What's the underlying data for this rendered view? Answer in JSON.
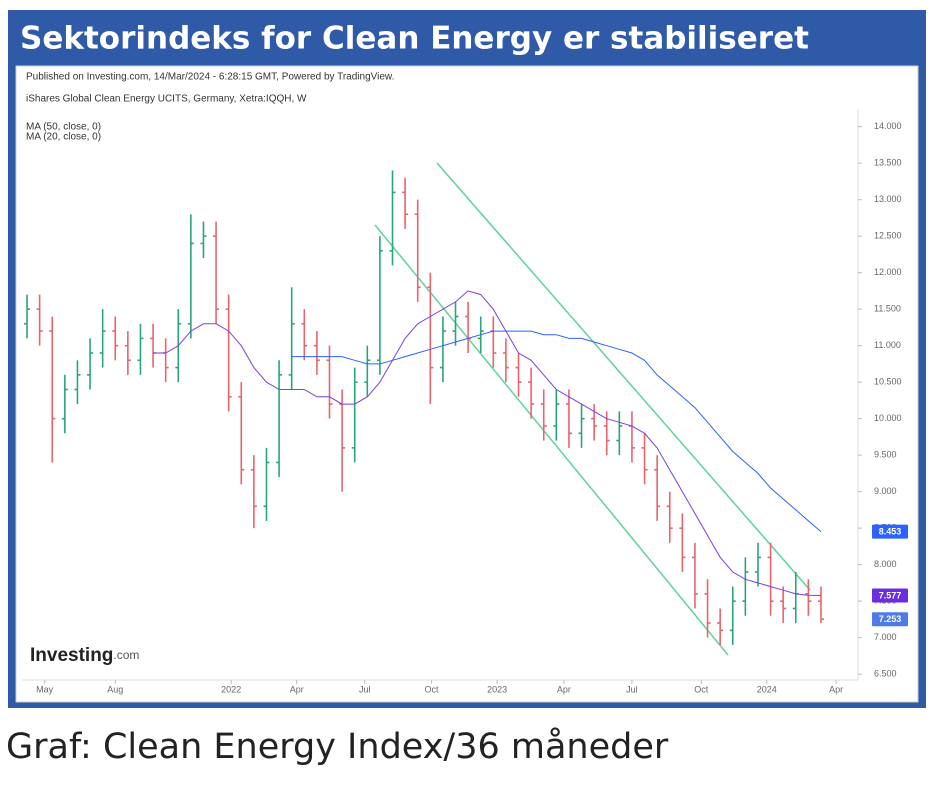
{
  "header": {
    "title": "Sektorindeks for Clean Energy er stabiliseret"
  },
  "caption": "Graf: Clean Energy Index/36 måneder",
  "chart_data": {
    "type": "ohlc",
    "subtitle": "Published on Investing.com, 14/Mar/2024 - 6:28:15 GMT, Powered by TradingView.",
    "title": "iShares Global Clean Energy UCITS, Germany, Xetra:IQQH, W",
    "watermark": {
      "main": "Investing",
      "suffix": ".com"
    },
    "x": [
      0,
      1,
      2,
      3,
      4,
      5,
      6,
      7,
      8,
      9,
      10,
      11,
      12,
      13,
      14,
      15,
      16,
      17,
      18,
      19,
      20,
      21,
      22,
      23,
      24,
      25,
      26,
      27,
      28,
      29,
      30,
      31,
      32,
      33,
      34,
      35,
      36,
      37,
      38,
      39,
      40,
      41,
      42,
      43,
      44,
      45,
      46,
      47,
      48,
      49,
      50,
      51,
      52,
      53,
      54,
      55,
      56,
      57,
      58,
      59,
      60,
      61,
      62,
      63
    ],
    "xlim": [
      -0.4,
      65.7
    ],
    "xticks": [
      {
        "value": 1.4,
        "label": "May"
      },
      {
        "value": 7.0,
        "label": "Aug"
      },
      {
        "value": 16.2,
        "label": "2022"
      },
      {
        "value": 21.4,
        "label": "Apr"
      },
      {
        "value": 26.8,
        "label": "Jul"
      },
      {
        "value": 32.1,
        "label": "Oct"
      },
      {
        "value": 37.3,
        "label": "2023"
      },
      {
        "value": 42.6,
        "label": "Apr"
      },
      {
        "value": 48.0,
        "label": "Jul"
      },
      {
        "value": 53.5,
        "label": "Oct"
      },
      {
        "value": 58.7,
        "label": "2024"
      },
      {
        "value": 64.2,
        "label": "Apr"
      }
    ],
    "ylim": [
      6.42,
      14.16
    ],
    "yticks": [
      {
        "value": 6.5,
        "label": "6.500"
      },
      {
        "value": 7,
        "label": "7.000"
      },
      {
        "value": 7.5,
        "label": "7.500"
      },
      {
        "value": 8,
        "label": "8.000"
      },
      {
        "value": 8.5,
        "label": "8.500"
      },
      {
        "value": 9,
        "label": "9.000"
      },
      {
        "value": 9.5,
        "label": "9.500"
      },
      {
        "value": 10,
        "label": "10.000"
      },
      {
        "value": 10.5,
        "label": "10.500"
      },
      {
        "value": 11,
        "label": "11.000"
      },
      {
        "value": 11.5,
        "label": "11.500"
      },
      {
        "value": 12,
        "label": "12.000"
      },
      {
        "value": 12.5,
        "label": "12.500"
      },
      {
        "value": 13,
        "label": "13.000"
      },
      {
        "value": 13.5,
        "label": "13.500"
      },
      {
        "value": 14,
        "label": "14.000"
      }
    ],
    "ohlc": {
      "up_color": "#2aa57a",
      "down_color": "#e8646f",
      "tag_color": "#4f7be8",
      "open": [
        11.3,
        11.5,
        11.2,
        10.0,
        10.4,
        10.6,
        10.9,
        11.2,
        11.0,
        10.8,
        11.1,
        10.9,
        10.7,
        11.3,
        12.4,
        12.5,
        11.5,
        10.3,
        9.3,
        8.8,
        9.4,
        10.6,
        11.3,
        11.0,
        10.8,
        10.2,
        9.6,
        10.5,
        10.8,
        12.3,
        13.1,
        12.8,
        11.8,
        10.7,
        11.2,
        11.4,
        11.1,
        11.2,
        10.9,
        10.7,
        10.5,
        10.2,
        9.9,
        10.2,
        9.8,
        10.0,
        9.9,
        9.7,
        9.9,
        9.6,
        9.3,
        8.8,
        8.5,
        8.1,
        7.6,
        7.2,
        7.1,
        7.5,
        7.9,
        8.1,
        7.5,
        7.4,
        7.6,
        7.5
      ],
      "high": [
        11.7,
        11.7,
        11.4,
        10.6,
        10.8,
        11.1,
        11.5,
        11.4,
        11.2,
        11.3,
        11.3,
        11.1,
        11.5,
        12.8,
        12.7,
        12.7,
        11.7,
        10.5,
        9.5,
        9.6,
        10.8,
        11.8,
        11.5,
        11.2,
        11.0,
        10.4,
        10.7,
        11.0,
        12.5,
        13.4,
        13.3,
        13.0,
        12.0,
        11.4,
        11.6,
        11.6,
        11.4,
        11.4,
        11.1,
        10.9,
        10.7,
        10.4,
        10.4,
        10.4,
        10.2,
        10.2,
        10.1,
        10.1,
        10.1,
        9.8,
        9.5,
        9.0,
        8.7,
        8.3,
        7.8,
        7.4,
        7.7,
        8.1,
        8.3,
        8.3,
        7.7,
        7.9,
        7.8,
        7.7
      ],
      "low": [
        11.1,
        11.0,
        9.4,
        9.8,
        10.2,
        10.4,
        10.7,
        10.8,
        10.6,
        10.6,
        10.7,
        10.5,
        10.5,
        11.1,
        12.2,
        11.3,
        10.1,
        9.1,
        8.5,
        8.6,
        9.2,
        10.4,
        10.8,
        10.6,
        10.0,
        9.0,
        9.4,
        10.3,
        10.6,
        12.1,
        12.6,
        11.6,
        10.2,
        10.5,
        11.0,
        10.9,
        10.9,
        10.7,
        10.5,
        10.3,
        10.0,
        9.7,
        9.7,
        9.6,
        9.6,
        9.7,
        9.5,
        9.5,
        9.4,
        9.1,
        8.6,
        8.3,
        7.9,
        7.4,
        7.0,
        6.9,
        6.9,
        7.3,
        7.7,
        7.3,
        7.2,
        7.2,
        7.3,
        7.2
      ],
      "close": [
        11.5,
        11.2,
        10.0,
        10.4,
        10.6,
        10.9,
        11.2,
        11.0,
        10.8,
        11.1,
        10.9,
        10.7,
        11.3,
        12.4,
        12.5,
        11.5,
        10.3,
        9.3,
        8.8,
        9.4,
        10.6,
        11.3,
        11.0,
        10.8,
        10.2,
        9.6,
        10.5,
        10.8,
        12.3,
        13.1,
        12.8,
        11.8,
        10.7,
        11.2,
        11.4,
        11.1,
        11.2,
        10.9,
        10.7,
        10.5,
        10.2,
        9.9,
        10.2,
        9.8,
        10.0,
        9.9,
        9.7,
        9.9,
        9.6,
        9.3,
        8.8,
        8.5,
        8.1,
        7.6,
        7.2,
        7.1,
        7.5,
        7.9,
        8.1,
        7.5,
        7.4,
        7.6,
        7.5,
        7.253
      ]
    },
    "series": [
      {
        "name": "MA (50, close, 0)",
        "color": "#2962ff",
        "tag_color": "#2962ff",
        "values": [
          null,
          null,
          null,
          null,
          null,
          null,
          null,
          null,
          null,
          null,
          null,
          null,
          null,
          null,
          null,
          null,
          null,
          null,
          null,
          null,
          null,
          10.85,
          10.85,
          10.85,
          10.85,
          10.85,
          10.8,
          10.75,
          10.75,
          10.8,
          10.85,
          10.9,
          10.95,
          11.0,
          11.05,
          11.1,
          11.15,
          11.2,
          11.2,
          11.2,
          11.2,
          11.15,
          11.15,
          11.1,
          11.1,
          11.05,
          11.0,
          10.95,
          10.9,
          10.8,
          10.6,
          10.45,
          10.3,
          10.15,
          9.95,
          9.75,
          9.55,
          9.4,
          9.25,
          9.05,
          8.9,
          8.75,
          8.6,
          8.453
        ]
      },
      {
        "name": "MA (20, close, 0)",
        "color": "#7b3fe4",
        "tag_color": "#6a2ee0",
        "values": [
          null,
          null,
          null,
          null,
          null,
          null,
          null,
          null,
          null,
          null,
          10.9,
          10.9,
          11.0,
          11.2,
          11.3,
          11.3,
          11.2,
          11.0,
          10.7,
          10.5,
          10.4,
          10.4,
          10.4,
          10.3,
          10.3,
          10.2,
          10.2,
          10.3,
          10.5,
          10.8,
          11.1,
          11.3,
          11.4,
          11.5,
          11.6,
          11.75,
          11.7,
          11.5,
          11.2,
          10.9,
          10.8,
          10.6,
          10.4,
          10.3,
          10.2,
          10.1,
          10.0,
          9.95,
          9.9,
          9.8,
          9.6,
          9.3,
          9.0,
          8.7,
          8.4,
          8.1,
          7.9,
          7.8,
          7.75,
          7.7,
          7.65,
          7.6,
          7.58,
          7.577
        ]
      }
    ]
  }
}
